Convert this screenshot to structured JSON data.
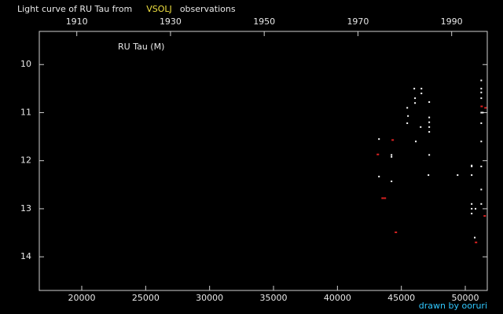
{
  "chart_data": {
    "type": "scatter",
    "title_prefix": "Light curve of RU Tau from",
    "title_source": "VSOLJ",
    "title_suffix": "observations",
    "label": "RU Tau (M)",
    "credit": "drawn by ooruri",
    "xlim": [
      16680,
      51720
    ],
    "xticks": [
      20000,
      25000,
      30000,
      35000,
      40000,
      45000,
      50000
    ],
    "x2lim": [
      1902,
      1997.6
    ],
    "x2ticks": [
      1910,
      1930,
      1950,
      1970,
      1990
    ],
    "ylim": [
      14.7,
      9.31
    ],
    "yticks": [
      10,
      11,
      12,
      13,
      14
    ],
    "series": [
      {
        "color": "#ffffff",
        "x": [
          43250,
          43250,
          44230,
          44230,
          44230,
          45460,
          45460,
          45520,
          46010,
          46070,
          46070,
          46130,
          46510,
          46570,
          46570,
          47180,
          47180,
          47180,
          47180,
          47180,
          47180,
          47120,
          49400,
          50500,
          50500,
          50500,
          50500,
          50500,
          50500,
          50800,
          50740,
          51250,
          51250,
          51250,
          51250,
          51250,
          51250,
          51250,
          51250,
          51250,
          51250,
          51370
        ],
        "values": [
          11.55,
          12.33,
          11.88,
          11.92,
          12.43,
          11.22,
          10.9,
          11.07,
          10.5,
          10.7,
          10.8,
          11.6,
          11.3,
          10.5,
          10.6,
          10.78,
          11.1,
          11.2,
          11.3,
          11.4,
          11.88,
          12.3,
          12.3,
          12.1,
          12.12,
          12.3,
          12.9,
          13.0,
          13.1,
          13.0,
          13.6,
          10.33,
          10.5,
          10.58,
          10.7,
          11.0,
          11.22,
          11.6,
          12.12,
          12.6,
          12.9,
          11.0
        ]
      },
      {
        "color": "#dd2222",
        "x": [
          43130,
          43500,
          43680,
          44290,
          44540,
          50810,
          51250,
          51550,
          51490
        ],
        "values": [
          11.87,
          12.78,
          12.78,
          11.57,
          13.49,
          13.7,
          10.87,
          10.9,
          13.15
        ]
      }
    ]
  }
}
